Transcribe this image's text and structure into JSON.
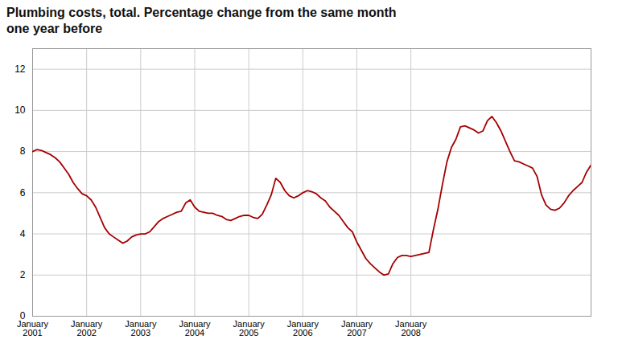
{
  "chart_data": {
    "type": "line",
    "title": "Plumbing costs, total. Percentage change from the same month\none year before",
    "categories": [
      "January\n2001",
      null,
      null,
      null,
      null,
      null,
      null,
      null,
      null,
      null,
      null,
      null,
      "January\n2002",
      null,
      null,
      null,
      null,
      null,
      null,
      null,
      null,
      null,
      null,
      null,
      "January\n2003",
      null,
      null,
      null,
      null,
      null,
      null,
      null,
      null,
      null,
      null,
      null,
      "January\n2004",
      null,
      null,
      null,
      null,
      null,
      null,
      null,
      null,
      null,
      null,
      null,
      "January\n2005",
      null,
      null,
      null,
      null,
      null,
      null,
      null,
      null,
      null,
      null,
      null,
      "January\n2006",
      null,
      null,
      null,
      null,
      null,
      null,
      null,
      null,
      null,
      null,
      null,
      "January\n2007",
      null,
      null,
      null,
      null,
      null,
      null,
      null,
      null,
      null,
      null,
      null,
      "January\n2008",
      null,
      null,
      null,
      null,
      null,
      null,
      null,
      null,
      null,
      null,
      null,
      null,
      null,
      null,
      null,
      null,
      null,
      null,
      null,
      null,
      null,
      null,
      null,
      null,
      null,
      null,
      null,
      null,
      null,
      null,
      null,
      null,
      null,
      null,
      null,
      null,
      null,
      null,
      null,
      null
    ],
    "values": [
      8.0,
      8.1,
      8.05,
      7.95,
      7.85,
      7.7,
      7.5,
      7.2,
      6.9,
      6.5,
      6.2,
      5.95,
      5.85,
      5.65,
      5.3,
      4.8,
      4.3,
      4.0,
      3.85,
      3.7,
      3.55,
      3.65,
      3.85,
      3.95,
      4.0,
      4.0,
      4.1,
      4.35,
      4.6,
      4.75,
      4.85,
      4.95,
      5.05,
      5.1,
      5.5,
      5.65,
      5.3,
      5.1,
      5.05,
      5.0,
      5.0,
      4.9,
      4.85,
      4.7,
      4.65,
      4.75,
      4.85,
      4.9,
      4.9,
      4.8,
      4.75,
      4.95,
      5.4,
      5.9,
      6.7,
      6.5,
      6.1,
      5.85,
      5.75,
      5.85,
      6.0,
      6.1,
      6.05,
      5.95,
      5.75,
      5.6,
      5.3,
      5.1,
      4.9,
      4.6,
      4.3,
      4.1,
      3.6,
      3.2,
      2.8,
      2.55,
      2.35,
      2.15,
      2.0,
      2.05,
      2.55,
      2.85,
      2.95,
      2.95,
      2.9,
      2.95,
      3.0,
      3.05,
      3.1,
      4.2,
      5.2,
      6.4,
      7.5,
      8.2,
      8.6,
      9.2,
      9.25,
      9.15,
      9.05,
      8.9,
      9.0,
      9.5,
      9.7,
      9.4,
      9.0,
      8.5,
      8.0,
      7.55,
      7.5,
      7.4,
      7.3,
      7.2,
      6.8,
      5.9,
      5.4,
      5.2,
      5.15,
      5.25,
      5.5,
      5.85,
      6.1,
      6.3,
      6.5,
      7.0,
      7.35
    ],
    "color": "#a50000",
    "ylim": [
      0,
      13
    ],
    "yticks": [
      0,
      2,
      4,
      6,
      8,
      10,
      12
    ],
    "grid": true
  }
}
